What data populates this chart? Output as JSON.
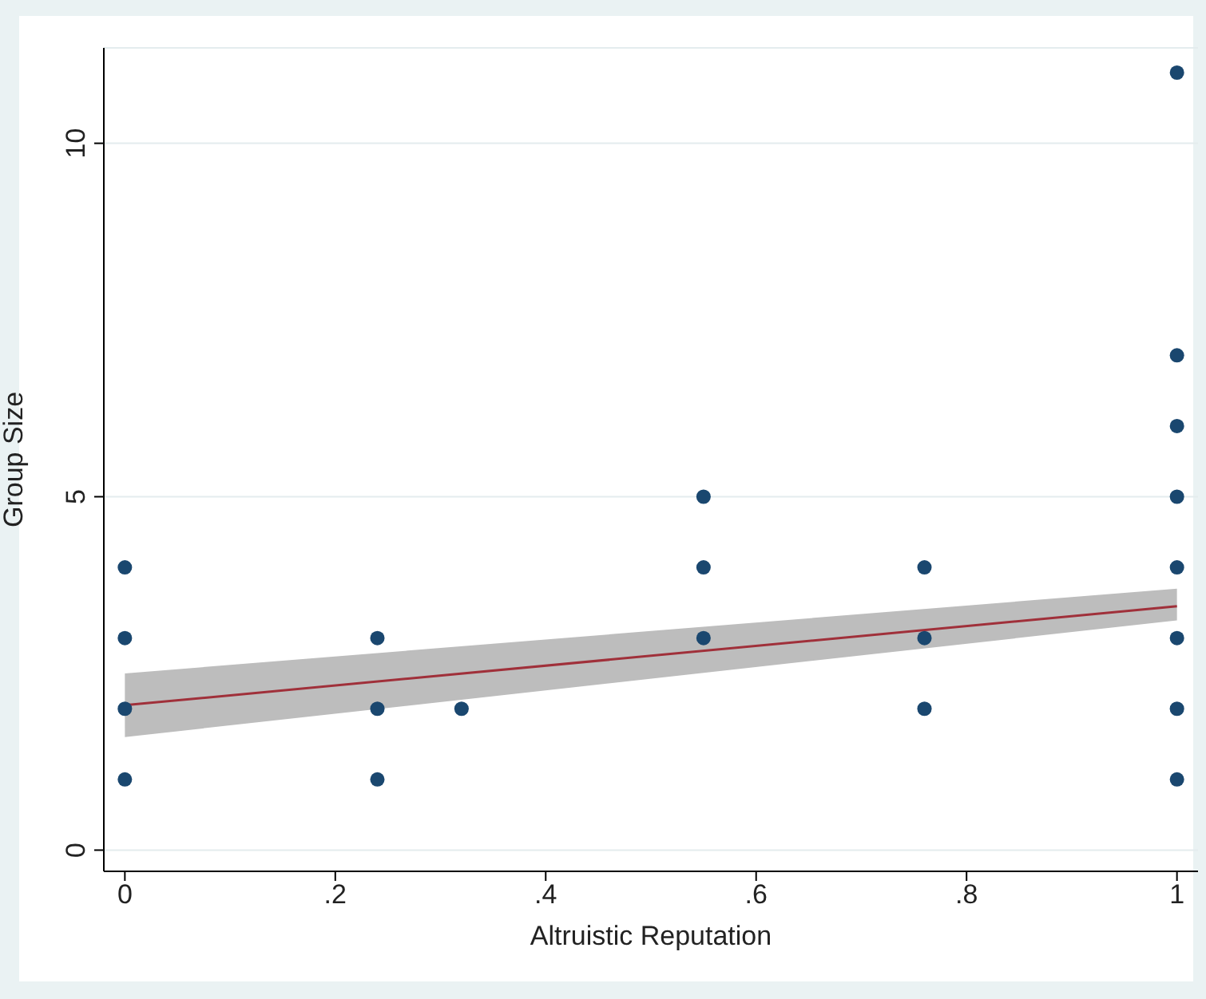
{
  "chart_data": {
    "type": "scatter",
    "xlabel": "Altruistic Reputation",
    "ylabel": "Group Size",
    "xlim": [
      -0.02,
      1.02
    ],
    "ylim": [
      -0.3,
      11.35
    ],
    "xticks": [
      {
        "value": 0,
        "label": "0"
      },
      {
        "value": 0.2,
        "label": ".2"
      },
      {
        "value": 0.4,
        "label": ".4"
      },
      {
        "value": 0.6,
        "label": ".6"
      },
      {
        "value": 0.8,
        "label": ".8"
      },
      {
        "value": 1,
        "label": "1"
      }
    ],
    "yticks": [
      0,
      5,
      10
    ],
    "grid": "y",
    "series": [
      {
        "marker": "circle",
        "color": "#1a476f",
        "x": [
          0,
          0,
          0,
          0,
          0.24,
          0.24,
          0.24,
          0.32,
          0.55,
          0.55,
          0.55,
          0.76,
          0.76,
          0.76,
          1,
          1,
          1,
          1,
          1,
          1,
          1,
          1
        ],
        "values": [
          1,
          2,
          3,
          4,
          1,
          2,
          3,
          2,
          3,
          4,
          5,
          2,
          3,
          4,
          1,
          2,
          3,
          4,
          5,
          6,
          7,
          11
        ]
      },
      {
        "type": "line",
        "color": "#a0303a",
        "x": [
          0,
          1
        ],
        "values": [
          2.05,
          3.45
        ],
        "lower": [
          1.6,
          3.25
        ],
        "upper": [
          2.5,
          3.7
        ]
      }
    ]
  }
}
